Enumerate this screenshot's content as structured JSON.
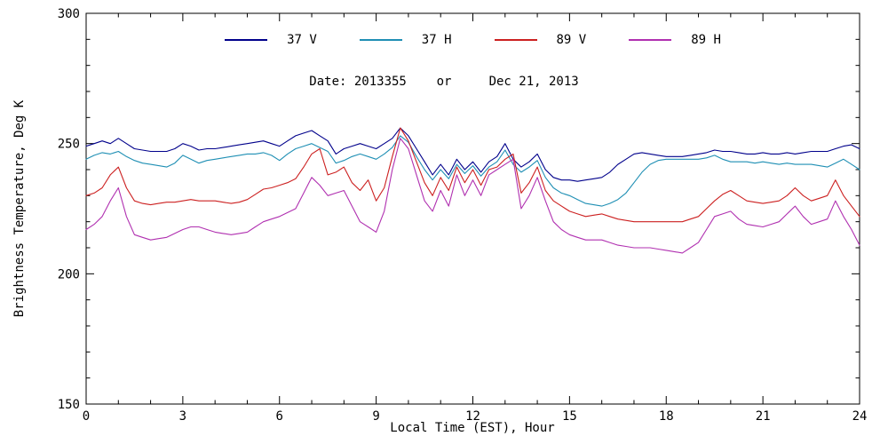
{
  "figure": {
    "background": "#ffffff",
    "frame_color": "#000000"
  },
  "annotation": {
    "text": "Date: 2013355    or     Dec 21, 2013"
  },
  "chart_data": {
    "type": "line",
    "title": "",
    "xlabel": "Local Time (EST), Hour",
    "ylabel": "Brightness Temperature, Deg K",
    "xlim": [
      0,
      24
    ],
    "ylim": [
      150,
      300
    ],
    "xticks": [
      0,
      3,
      6,
      9,
      12,
      15,
      18,
      21,
      24
    ],
    "yticks": [
      150,
      200,
      250,
      300
    ],
    "x_minor_step": 1,
    "y_minor_step": 10,
    "grid": false,
    "legend_position": "top-center",
    "x": [
      0,
      0.25,
      0.5,
      0.75,
      1,
      1.25,
      1.5,
      1.75,
      2,
      2.25,
      2.5,
      2.75,
      3,
      3.25,
      3.5,
      3.75,
      4,
      4.25,
      4.5,
      4.75,
      5,
      5.25,
      5.5,
      5.75,
      6,
      6.25,
      6.5,
      6.75,
      7,
      7.25,
      7.5,
      7.75,
      8,
      8.25,
      8.5,
      8.75,
      9,
      9.25,
      9.5,
      9.75,
      10,
      10.25,
      10.5,
      10.75,
      11,
      11.25,
      11.5,
      11.75,
      12,
      12.25,
      12.5,
      12.75,
      13,
      13.25,
      13.5,
      13.75,
      14,
      14.25,
      14.5,
      14.75,
      15,
      15.25,
      15.5,
      15.75,
      16,
      16.25,
      16.5,
      16.75,
      17,
      17.25,
      17.5,
      17.75,
      18,
      18.25,
      18.5,
      18.75,
      19,
      19.25,
      19.5,
      19.75,
      20,
      20.25,
      20.5,
      20.75,
      21,
      21.25,
      21.5,
      21.75,
      22,
      22.25,
      22.5,
      22.75,
      23,
      23.25,
      23.5,
      23.75,
      24
    ],
    "series": [
      {
        "name": "37 V",
        "color": "#00008B",
        "values": [
          249,
          250,
          251,
          250,
          252,
          250,
          248,
          247.5,
          247,
          247,
          247,
          248,
          250,
          249,
          247.5,
          248,
          248,
          248.5,
          249,
          249.5,
          250,
          250.5,
          251,
          250,
          249,
          251,
          253,
          254,
          255,
          253,
          251,
          246,
          248,
          249,
          250,
          249,
          248,
          250,
          252,
          256,
          253,
          248,
          243,
          238,
          242,
          238,
          244,
          240,
          243,
          239,
          243,
          245,
          250,
          244,
          241,
          243,
          246,
          240,
          237,
          236,
          236,
          235.5,
          236,
          236.5,
          237,
          239,
          242,
          244,
          246,
          246.5,
          246,
          245.5,
          245,
          245,
          245,
          245.5,
          246,
          246.5,
          247.5,
          247,
          247,
          246.5,
          246,
          246,
          246.5,
          246,
          246,
          246.5,
          246,
          246.5,
          247,
          247,
          247,
          248,
          249,
          249.5,
          248
        ]
      },
      {
        "name": "37 H",
        "color": "#1F8FB4",
        "values": [
          244,
          245.5,
          246.5,
          246,
          247,
          245,
          243.5,
          242.5,
          242,
          241.5,
          241,
          242.5,
          245.5,
          244,
          242.5,
          243.5,
          244,
          244.5,
          245,
          245.5,
          246,
          246,
          246.5,
          245.5,
          243.5,
          246,
          248,
          249,
          250,
          248.5,
          247,
          242.5,
          243.5,
          245,
          246,
          245,
          244,
          246,
          248.5,
          253,
          250.5,
          245,
          240,
          236,
          240,
          236.5,
          242,
          238.5,
          241.5,
          237.5,
          241,
          243,
          247.5,
          242,
          239,
          241,
          243.5,
          237,
          233,
          231,
          230,
          228.5,
          227,
          226.5,
          226,
          227,
          228.5,
          231,
          235,
          239,
          242,
          243.5,
          244,
          244,
          244,
          244,
          244,
          244.5,
          245.5,
          244,
          243,
          243,
          243,
          242.5,
          243,
          242.5,
          242,
          242.5,
          242,
          242,
          242,
          241.5,
          241,
          242.5,
          244,
          242,
          240
        ]
      },
      {
        "name": "89 V",
        "color": "#CC2020",
        "values": [
          230,
          231,
          233,
          238,
          241,
          233,
          228,
          227,
          226.5,
          227,
          227.5,
          227.5,
          228,
          228.5,
          228,
          228,
          228,
          227.5,
          227,
          227.5,
          228.5,
          230.5,
          232.5,
          233,
          234,
          235,
          236.5,
          241,
          246,
          248,
          238,
          239,
          241,
          235,
          232,
          236,
          228,
          233,
          245,
          256,
          251,
          243,
          235,
          230,
          237,
          232,
          241,
          235,
          240,
          234,
          240,
          241,
          244,
          246,
          231,
          235,
          241,
          232,
          228,
          226,
          224,
          223,
          222,
          222.5,
          223,
          222,
          221,
          220.5,
          220,
          220,
          220,
          220,
          220,
          220,
          220,
          221,
          222,
          225,
          228,
          230.5,
          232,
          230,
          228,
          227.5,
          227,
          227.5,
          228,
          230,
          233,
          230,
          228,
          229,
          230,
          236,
          230,
          226,
          222
        ]
      },
      {
        "name": "89 H",
        "color": "#B030B0",
        "values": [
          217,
          219,
          222,
          228,
          233,
          222,
          215,
          214,
          213,
          213.5,
          214,
          215.5,
          217,
          218,
          218,
          217,
          216,
          215.5,
          215,
          215.5,
          216,
          218,
          220,
          221,
          222,
          223.5,
          225,
          231,
          237,
          234,
          230,
          231,
          232,
          226,
          220,
          218,
          216,
          224,
          240,
          252,
          248,
          238,
          228,
          224,
          232,
          226,
          238,
          230,
          236,
          230,
          238,
          240,
          242,
          244,
          225,
          230,
          237,
          228,
          220,
          217,
          215,
          214,
          213,
          213,
          213,
          212,
          211,
          210.5,
          210,
          210,
          210,
          209.5,
          209,
          208.5,
          208,
          210,
          212,
          217,
          222,
          223,
          224,
          221,
          219,
          218.5,
          218,
          219,
          220,
          223,
          226,
          222,
          219,
          220,
          221,
          228,
          222,
          217,
          211
        ]
      }
    ]
  }
}
